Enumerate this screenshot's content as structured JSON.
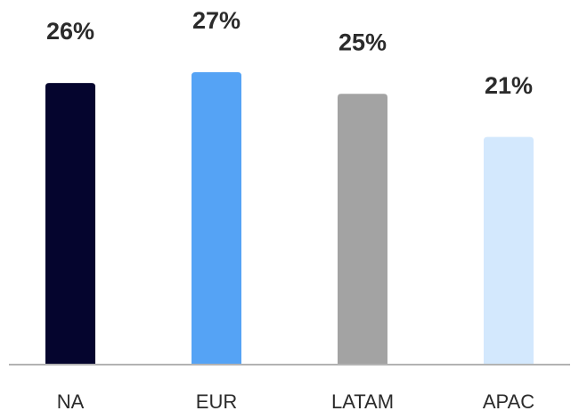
{
  "chart_data": {
    "type": "bar",
    "categories": [
      "NA",
      "EUR",
      "LATAM",
      "APAC"
    ],
    "values": [
      26,
      27,
      25,
      21
    ],
    "value_labels": [
      "26%",
      "27%",
      "25%",
      "21%"
    ],
    "colors": [
      "#05052e",
      "#55a3f5",
      "#a3a3a3",
      "#d3e8fd"
    ]
  }
}
